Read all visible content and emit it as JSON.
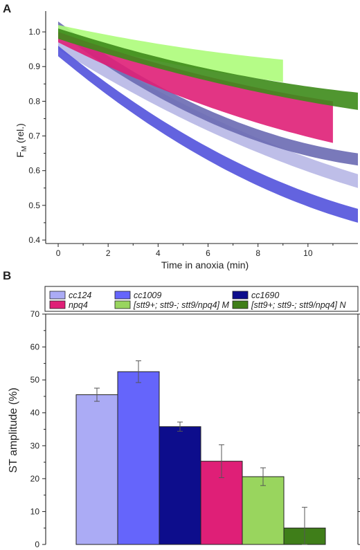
{
  "chart_data": [
    {
      "panel": "A",
      "type": "area",
      "xlabel": "Time in anoxia (min)",
      "ylabel": "F",
      "ylabel_sub": "M",
      "ylabel_suffix": " (rel.)",
      "xlim": [
        -0.5,
        12
      ],
      "ylim": [
        0.39,
        1.06
      ],
      "xticks": [
        0,
        2,
        4,
        6,
        8,
        10
      ],
      "yticks": [
        0.4,
        0.5,
        0.6,
        0.7,
        0.8,
        0.9,
        1.0
      ],
      "series": [
        {
          "color": "#b7b7e6",
          "t_end": 12,
          "upper": [
            1.0,
            0.72,
            0.59
          ],
          "lower": [
            0.95,
            0.68,
            0.55
          ]
        },
        {
          "color": "#5252dc",
          "t_end": 12,
          "upper": [
            0.96,
            0.61,
            0.49
          ],
          "lower": [
            0.93,
            0.57,
            0.45
          ]
        },
        {
          "color": "#6a6ab2",
          "t_end": 12,
          "upper": [
            1.03,
            0.71,
            0.65
          ],
          "lower": [
            1.0,
            0.675,
            0.615
          ]
        },
        {
          "color": "#adfc7a",
          "t_end": 9,
          "upper": [
            1.02,
            0.95,
            0.92
          ],
          "lower": [
            0.98,
            0.9,
            0.855
          ]
        },
        {
          "color": "#df1f77",
          "t_end": 11,
          "upper": [
            1.0,
            0.86,
            0.8
          ],
          "lower": [
            0.97,
            0.77,
            0.68
          ]
        },
        {
          "color": "#3d8b1a",
          "t_end": 12,
          "upper": [
            1.01,
            0.87,
            0.825
          ],
          "lower": [
            0.98,
            0.84,
            0.775
          ]
        }
      ]
    },
    {
      "panel": "B",
      "type": "bar",
      "ylabel": "ST amplitude (%)",
      "ylim": [
        0,
        70
      ],
      "yticks": [
        0,
        10,
        20,
        30,
        40,
        50,
        60,
        70
      ],
      "categories": [
        "cc124",
        "cc1009",
        "cc1690",
        "npq4",
        "[stt9+; stt9-; stt9/npq4] M",
        "[stt9+; stt9-; stt9/npq4] N"
      ],
      "values": [
        45.5,
        52.5,
        35.8,
        25.3,
        20.6,
        5.0
      ],
      "errors": [
        2.0,
        3.3,
        1.4,
        5.0,
        2.7,
        6.3
      ],
      "colors": [
        "#ababf5",
        "#6565fb",
        "#0d0d8c",
        "#df1f77",
        "#99d55e",
        "#3f7e19"
      ],
      "legend_position": "top"
    }
  ]
}
